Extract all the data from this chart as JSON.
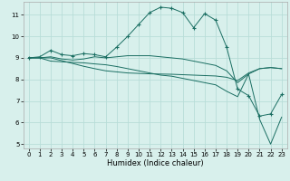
{
  "xlabel": "Humidex (Indice chaleur)",
  "xlim": [
    -0.5,
    23.5
  ],
  "ylim": [
    4.8,
    11.6
  ],
  "yticks": [
    5,
    6,
    7,
    8,
    9,
    10,
    11
  ],
  "xticks": [
    0,
    1,
    2,
    3,
    4,
    5,
    6,
    7,
    8,
    9,
    10,
    11,
    12,
    13,
    14,
    15,
    16,
    17,
    18,
    19,
    20,
    21,
    22,
    23
  ],
  "bg_color": "#d8f0ec",
  "grid_color": "#b8ddd8",
  "line_color": "#1a6e62",
  "line1_x": [
    0,
    1,
    2,
    3,
    4,
    5,
    6,
    7,
    8,
    9,
    10,
    11,
    12,
    13,
    14,
    15,
    16,
    17,
    18,
    19,
    20,
    21,
    22,
    23
  ],
  "line1_y": [
    9.0,
    9.05,
    9.35,
    9.15,
    9.1,
    9.2,
    9.15,
    9.05,
    9.5,
    10.0,
    10.55,
    11.1,
    11.35,
    11.3,
    11.1,
    10.4,
    11.05,
    10.75,
    9.5,
    7.55,
    7.25,
    6.3,
    6.4,
    7.3
  ],
  "line2_x": [
    0,
    1,
    2,
    3,
    4,
    5,
    6,
    7,
    8,
    9,
    10,
    11,
    12,
    13,
    14,
    15,
    16,
    17,
    18,
    19,
    20,
    21,
    22,
    23
  ],
  "line2_y": [
    9.0,
    9.0,
    9.05,
    8.95,
    8.9,
    8.95,
    9.05,
    9.0,
    9.05,
    9.1,
    9.1,
    9.1,
    9.05,
    9.0,
    8.95,
    8.85,
    8.75,
    8.65,
    8.4,
    7.85,
    8.25,
    8.5,
    8.55,
    8.5
  ],
  "line3_x": [
    0,
    1,
    2,
    3,
    4,
    5,
    6,
    7,
    8,
    9,
    10,
    11,
    12,
    13,
    14,
    15,
    16,
    17,
    18,
    19,
    20,
    21,
    22,
    23
  ],
  "line3_y": [
    9.0,
    9.0,
    8.85,
    8.82,
    8.79,
    8.77,
    8.72,
    8.68,
    8.6,
    8.5,
    8.4,
    8.3,
    8.2,
    8.15,
    8.05,
    7.95,
    7.85,
    7.75,
    7.45,
    7.2,
    8.25,
    6.15,
    5.0,
    6.25
  ],
  "line4_x": [
    0,
    1,
    2,
    3,
    4,
    5,
    6,
    7,
    8,
    9,
    10,
    11,
    12,
    13,
    14,
    15,
    16,
    17,
    18,
    19,
    20,
    21,
    22,
    23
  ],
  "line4_y": [
    9.0,
    9.0,
    9.0,
    8.87,
    8.74,
    8.61,
    8.5,
    8.4,
    8.35,
    8.3,
    8.28,
    8.26,
    8.25,
    8.24,
    8.22,
    8.2,
    8.18,
    8.16,
    8.1,
    7.95,
    8.3,
    8.5,
    8.55,
    8.5
  ]
}
